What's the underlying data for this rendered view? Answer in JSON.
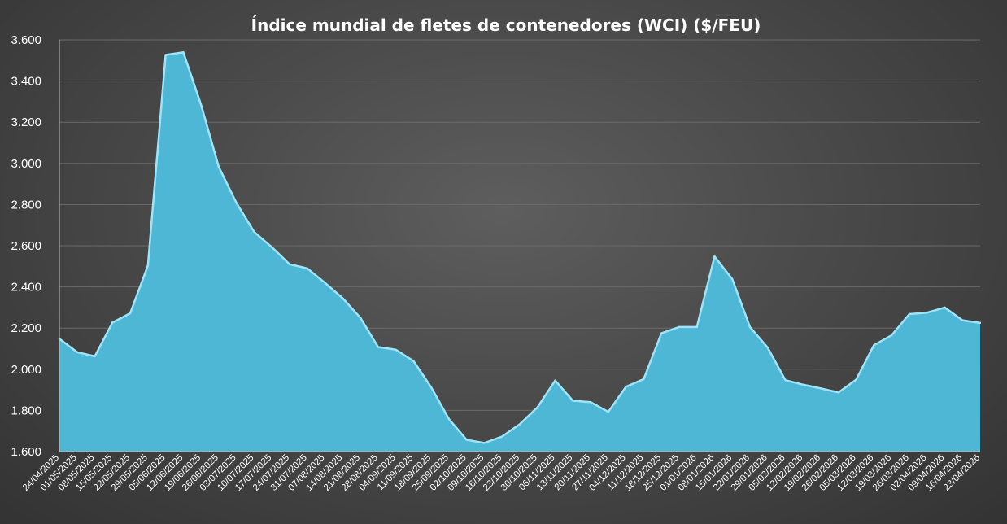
{
  "chart_data": {
    "type": "area",
    "title": "Índice mundial de fletes de contenedores (WCI) ($/FEU)",
    "xlabel": "",
    "ylabel": "",
    "ylim": [
      1600,
      3600
    ],
    "yticks": [
      1600,
      1800,
      2000,
      2200,
      2400,
      2600,
      2800,
      3000,
      3200,
      3400,
      3600
    ],
    "ytick_labels": [
      "1.600",
      "1.800",
      "2.000",
      "2.200",
      "2.400",
      "2.600",
      "2.800",
      "3.000",
      "3.200",
      "3.400",
      "3.600"
    ],
    "grid": true,
    "legend": "none",
    "colors": {
      "fill": "#4fb7d6",
      "edge": "#9fe4f6",
      "background": "#4a4a4a",
      "text": "#ffffff"
    },
    "categories": [
      "24/04/2025",
      "01/05/2025",
      "08/05/2025",
      "15/05/2025",
      "22/05/2025",
      "29/05/2025",
      "05/06/2025",
      "12/06/2025",
      "19/06/2025",
      "26/06/2025",
      "03/07/2025",
      "10/07/2025",
      "17/07/2025",
      "24/07/2025",
      "31/07/2025",
      "07/08/2025",
      "14/08/2025",
      "21/08/2025",
      "28/08/2025",
      "04/09/2025",
      "11/09/2025",
      "18/09/2025",
      "25/09/2025",
      "02/10/2025",
      "09/10/2025",
      "16/10/2025",
      "23/10/2025",
      "30/10/2025",
      "06/11/2025",
      "13/11/2025",
      "20/11/2025",
      "27/11/2025",
      "04/12/2025",
      "11/12/2025",
      "18/12/2025",
      "25/12/2025",
      "01/01/2026",
      "08/01/2026",
      "15/01/2026",
      "22/01/2026",
      "29/01/2026",
      "05/02/2026",
      "12/02/2026",
      "19/02/2026",
      "26/02/2026",
      "05/03/2026",
      "12/03/2026",
      "19/03/2026",
      "26/03/2026",
      "02/04/2026",
      "09/04/2026",
      "16/04/2026",
      "23/04/2026"
    ],
    "values": [
      2148,
      2083,
      2063,
      2227,
      2272,
      2504,
      3527,
      3540,
      3285,
      2983,
      2808,
      2667,
      2593,
      2510,
      2490,
      2420,
      2345,
      2250,
      2108,
      2095,
      2040,
      1912,
      1758,
      1657,
      1642,
      1673,
      1733,
      1815,
      1945,
      1847,
      1840,
      1793,
      1915,
      1952,
      2175,
      2205,
      2205,
      2548,
      2438,
      2205,
      2105,
      1947,
      1925,
      1907,
      1887,
      1950,
      2117,
      2165,
      2268,
      2275,
      2300,
      2238,
      2225
    ]
  }
}
